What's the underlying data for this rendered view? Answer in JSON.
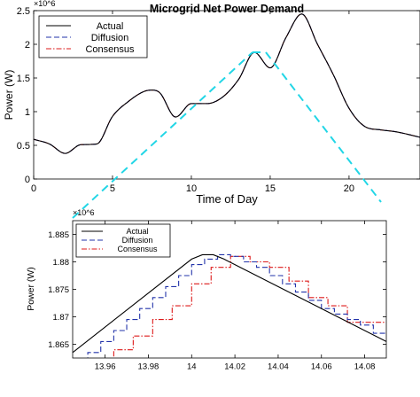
{
  "colors": {
    "actual": "#000000",
    "diffusion": "#2233aa",
    "consensus": "#dd1a1a",
    "zoom": "#22d6e6",
    "grid": "#cccccc"
  },
  "chart_data": [
    {
      "type": "line",
      "title": "Microgrid Net Power Demand",
      "xlabel": "Time of Day",
      "ylabel": "Power (W)",
      "y_exponent": "×10^6",
      "xlim": [
        0,
        24.5
      ],
      "ylim": [
        0,
        2500000
      ],
      "xticks": [
        0,
        5,
        10,
        15,
        20
      ],
      "xtick_labels": [
        "0",
        "5",
        "10",
        "15",
        "20"
      ],
      "yticks": [
        0,
        500000,
        1000000,
        1500000,
        2000000,
        2500000
      ],
      "ytick_labels": [
        "0",
        "0.5",
        "1",
        "1.5",
        "2",
        "2.5"
      ],
      "grid": false,
      "legend": {
        "position": "top-left",
        "entries": [
          "Actual",
          "Diffusion",
          "Consensus"
        ]
      },
      "x": [
        0,
        1,
        2,
        3,
        4,
        5,
        6,
        7,
        7.5,
        8,
        9,
        10,
        11,
        12,
        13,
        14,
        15,
        16,
        17,
        18,
        19,
        20,
        21,
        22,
        23,
        24.5
      ],
      "series": [
        {
          "name": "Actual",
          "values": [
            590000,
            520000,
            380000,
            510000,
            520000,
            930000,
            1150000,
            1300000,
            1320000,
            1280000,
            920000,
            1120000,
            1120000,
            1220000,
            1480000,
            1880000,
            1650000,
            2100000,
            2450000,
            2000000,
            1550000,
            1050000,
            780000,
            730000,
            700000,
            620000
          ]
        },
        {
          "name": "Diffusion",
          "values": [
            590000,
            520000,
            380000,
            510000,
            520000,
            930000,
            1150000,
            1300000,
            1320000,
            1280000,
            920000,
            1120000,
            1120000,
            1220000,
            1480000,
            1880000,
            1650000,
            2100000,
            2450000,
            2000000,
            1550000,
            1050000,
            780000,
            730000,
            700000,
            620000
          ]
        },
        {
          "name": "Consensus",
          "values": [
            590000,
            520000,
            380000,
            510000,
            520000,
            930000,
            1150000,
            1300000,
            1320000,
            1280000,
            920000,
            1120000,
            1120000,
            1220000,
            1480000,
            1880000,
            1650000,
            2100000,
            2450000,
            2000000,
            1550000,
            1050000,
            780000,
            730000,
            700000,
            620000
          ]
        }
      ]
    },
    {
      "type": "line",
      "title": "",
      "xlabel": "",
      "ylabel": "Power (W)",
      "y_exponent": "×10^6",
      "xlim": [
        13.945,
        14.09
      ],
      "ylim": [
        1.8625,
        1.8875
      ],
      "xticks": [
        13.96,
        13.98,
        14,
        14.02,
        14.04,
        14.06,
        14.08
      ],
      "xtick_labels": [
        "13.96",
        "13.98",
        "14",
        "14.02",
        "14.04",
        "14.06",
        "14.08"
      ],
      "yticks": [
        1.865,
        1.87,
        1.875,
        1.88,
        1.885
      ],
      "ytick_labels": [
        "1.865",
        "1.87",
        "1.875",
        "1.88",
        "1.885"
      ],
      "grid": false,
      "legend": {
        "position": "top-left",
        "entries": [
          "Actual",
          "Diffusion",
          "Consensus"
        ]
      },
      "series": [
        {
          "name": "Actual",
          "x": [
            13.945,
            14.0,
            14.005,
            14.01,
            14.015,
            14.09
          ],
          "values": [
            1.8635,
            1.8805,
            1.8813,
            1.8813,
            1.8805,
            1.8655
          ]
        },
        {
          "name": "Diffusion",
          "x": [
            13.945,
            13.952,
            13.952,
            13.958,
            13.958,
            13.964,
            13.964,
            13.97,
            13.97,
            13.976,
            13.976,
            13.982,
            13.982,
            13.988,
            13.988,
            13.994,
            13.994,
            14.0,
            14.0,
            14.006,
            14.006,
            14.012,
            14.012,
            14.018,
            14.018,
            14.024,
            14.024,
            14.03,
            14.03,
            14.036,
            14.036,
            14.042,
            14.042,
            14.048,
            14.048,
            14.054,
            14.054,
            14.06,
            14.06,
            14.066,
            14.066,
            14.072,
            14.072,
            14.078,
            14.078,
            14.084,
            14.084,
            14.09
          ],
          "values": [
            1.8615,
            1.8615,
            1.8635,
            1.8635,
            1.8655,
            1.8655,
            1.8675,
            1.8675,
            1.8695,
            1.8695,
            1.8715,
            1.8715,
            1.8735,
            1.8735,
            1.8755,
            1.8755,
            1.8775,
            1.8775,
            1.8795,
            1.8795,
            1.8805,
            1.8805,
            1.8813,
            1.8813,
            1.881,
            1.881,
            1.88,
            1.88,
            1.879,
            1.879,
            1.8775,
            1.8775,
            1.876,
            1.876,
            1.8745,
            1.8745,
            1.873,
            1.873,
            1.8715,
            1.8715,
            1.8705,
            1.8705,
            1.8695,
            1.8695,
            1.8685,
            1.8685,
            1.867,
            1.867
          ]
        },
        {
          "name": "Consensus",
          "x": [
            13.945,
            13.955,
            13.955,
            13.964,
            13.964,
            13.973,
            13.973,
            13.982,
            13.982,
            13.991,
            13.991,
            14.0,
            14.0,
            14.009,
            14.009,
            14.018,
            14.018,
            14.027,
            14.027,
            14.036,
            14.036,
            14.045,
            14.045,
            14.054,
            14.054,
            14.063,
            14.063,
            14.072,
            14.072,
            14.081,
            14.081,
            14.09
          ],
          "values": [
            1.861,
            1.861,
            1.861,
            1.861,
            1.864,
            1.864,
            1.8665,
            1.8665,
            1.8695,
            1.8695,
            1.872,
            1.872,
            1.876,
            1.876,
            1.879,
            1.879,
            1.881,
            1.881,
            1.88,
            1.88,
            1.879,
            1.879,
            1.8765,
            1.8765,
            1.8735,
            1.8735,
            1.872,
            1.872,
            1.869,
            1.869,
            1.869,
            1.869
          ]
        }
      ]
    }
  ]
}
